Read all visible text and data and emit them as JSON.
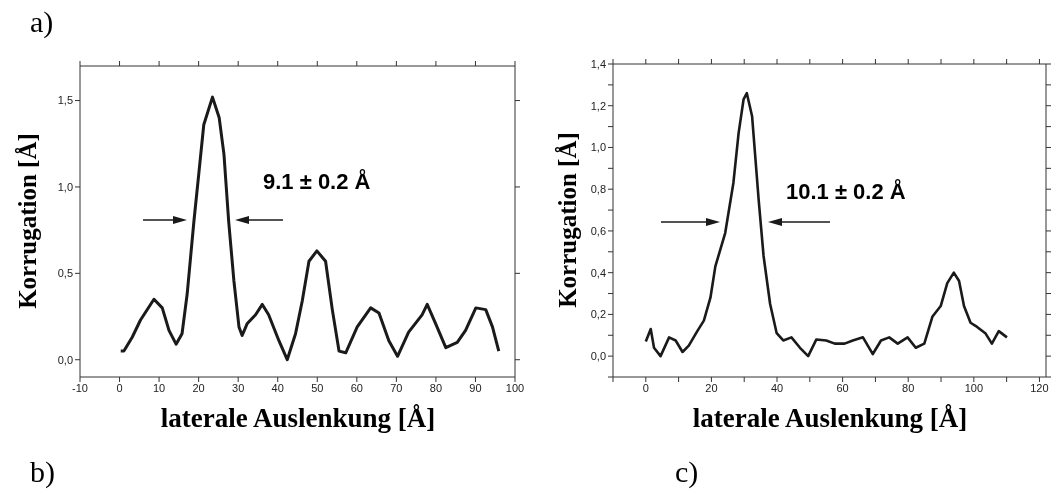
{
  "chart_data": [
    {
      "type": "line",
      "xlabel": "laterale Auslenkung [Å]",
      "ylabel": "Korrugation [Å]",
      "x": [
        0.3,
        1.1,
        3.2,
        5.3,
        8.7,
        10.8,
        12.5,
        14.3,
        15.8,
        17.1,
        18.8,
        20.1,
        21.3,
        23.5,
        25.2,
        26.4,
        27.6,
        28.9,
        30.2,
        31.0,
        32.3,
        34.4,
        36.1,
        37.7,
        40.3,
        42.4,
        44.5,
        46.2,
        47.9,
        49.9,
        52.1,
        53.8,
        55.5,
        57.2,
        60.1,
        63.5,
        65.6,
        68.1,
        70.3,
        73.1,
        76.5,
        77.8,
        79.9,
        82.5,
        85.4,
        87.5,
        90.1,
        92.6,
        94.3,
        95.9
      ],
      "series": [
        {
          "color": "#1a1a1a",
          "values": [
            0.05,
            0.05,
            0.13,
            0.23,
            0.35,
            0.3,
            0.17,
            0.09,
            0.15,
            0.38,
            0.8,
            1.09,
            1.36,
            1.52,
            1.4,
            1.19,
            0.8,
            0.46,
            0.19,
            0.14,
            0.21,
            0.26,
            0.32,
            0.26,
            0.11,
            0.0,
            0.15,
            0.34,
            0.57,
            0.63,
            0.57,
            0.29,
            0.05,
            0.04,
            0.19,
            0.3,
            0.27,
            0.11,
            0.02,
            0.16,
            0.26,
            0.32,
            0.21,
            0.07,
            0.1,
            0.17,
            0.3,
            0.29,
            0.19,
            0.05
          ]
        }
      ],
      "xlim": [
        -10,
        100
      ],
      "xticks": [
        -10,
        0,
        10,
        20,
        30,
        40,
        50,
        60,
        70,
        80,
        90,
        100
      ],
      "ylim": [
        -0.1,
        1.7
      ],
      "yticks": [
        {
          "value": 0,
          "label": "0,0"
        },
        {
          "value": 0.5,
          "label": "0,5"
        },
        {
          "value": 1.0,
          "label": "1,0"
        },
        {
          "value": 1.5,
          "label": "1,5"
        }
      ],
      "grid": false,
      "legend": false,
      "marker": "none",
      "line_style": "solid",
      "annotations": [
        "9.1 ± 0.2 Å",
        "a)",
        "b)"
      ]
    },
    {
      "type": "line",
      "xlabel": "laterale Auslenkung [Å]",
      "ylabel": "Korrugation [Å]",
      "x": [
        0.0,
        1.5,
        2.5,
        4.5,
        7.1,
        9.1,
        11.2,
        13.1,
        15.7,
        17.7,
        19.7,
        21.2,
        24.2,
        26.7,
        28.3,
        29.8,
        30.8,
        32.4,
        34.4,
        35.9,
        37.9,
        39.9,
        41.9,
        44.4,
        47.0,
        49.5,
        52.0,
        55.0,
        57.6,
        60.6,
        63.1,
        66.2,
        69.2,
        71.7,
        74.2,
        76.8,
        79.8,
        82.3,
        84.9,
        87.4,
        89.9,
        91.9,
        93.9,
        95.5,
        97.0,
        99.0,
        101.0,
        103.5,
        105.5,
        107.6,
        110.1
      ],
      "series": [
        {
          "color": "#1a1a1a",
          "values": [
            0.07,
            0.13,
            0.04,
            0.0,
            0.09,
            0.075,
            0.02,
            0.05,
            0.12,
            0.17,
            0.28,
            0.43,
            0.59,
            0.83,
            1.07,
            1.23,
            1.26,
            1.15,
            0.75,
            0.48,
            0.25,
            0.11,
            0.075,
            0.09,
            0.04,
            0.0,
            0.08,
            0.075,
            0.06,
            0.06,
            0.075,
            0.09,
            0.01,
            0.075,
            0.09,
            0.06,
            0.09,
            0.04,
            0.06,
            0.19,
            0.24,
            0.35,
            0.4,
            0.36,
            0.24,
            0.16,
            0.14,
            0.11,
            0.06,
            0.12,
            0.09
          ]
        }
      ],
      "xlim": [
        -10,
        122
      ],
      "xticks": [
        {
          "value": -10,
          "label": null
        },
        0,
        {
          "value": 10,
          "label": null
        },
        20,
        {
          "value": 30,
          "label": null
        },
        40,
        {
          "value": 50,
          "label": null
        },
        60,
        {
          "value": 70,
          "label": null
        },
        80,
        {
          "value": 90,
          "label": null
        },
        100,
        {
          "value": 110,
          "label": null
        },
        120
      ],
      "ylim": [
        -0.1,
        1.4
      ],
      "yticks": [
        {
          "value": -0.1,
          "label": null
        },
        {
          "value": 0,
          "label": "0,0"
        },
        {
          "value": 0.1,
          "label": null
        },
        {
          "value": 0.2,
          "label": "0,2"
        },
        {
          "value": 0.3,
          "label": null
        },
        {
          "value": 0.4,
          "label": "0,4"
        },
        {
          "value": 0.5,
          "label": null
        },
        {
          "value": 0.6,
          "label": "0,6"
        },
        {
          "value": 0.7,
          "label": null
        },
        {
          "value": 0.8,
          "label": "0,8"
        },
        {
          "value": 0.9,
          "label": null
        },
        {
          "value": 1.0,
          "label": "1,0"
        },
        {
          "value": 1.1,
          "label": null
        },
        {
          "value": 1.2,
          "label": "1,2"
        },
        {
          "value": 1.3,
          "label": null
        },
        {
          "value": 1.4,
          "label": "1,4"
        }
      ],
      "grid": false,
      "legend": false,
      "marker": "none",
      "line_style": "solid",
      "annotations": [
        "10.1 ± 0.2 Å",
        "c)"
      ]
    }
  ]
}
